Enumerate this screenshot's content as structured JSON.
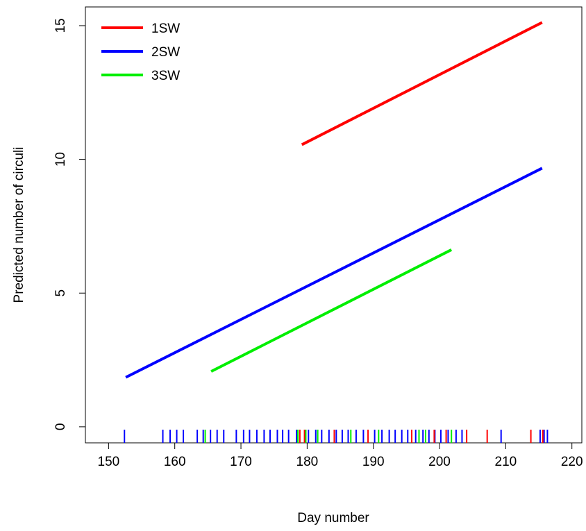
{
  "chart_data": {
    "type": "line",
    "xlabel": "Day number",
    "ylabel": "Predicted number of circuli",
    "xlim": [
      146.5,
      221.5
    ],
    "ylim": [
      -0.6,
      15.7
    ],
    "x_ticks": [
      150,
      160,
      170,
      180,
      190,
      200,
      210,
      220
    ],
    "y_ticks": [
      0,
      5,
      10,
      15
    ],
    "legend_position": "top-left",
    "grid": false,
    "series": [
      {
        "name": "1SW",
        "color": "#ff0000",
        "x": [
          179.2,
          215.5
        ],
        "y": [
          10.55,
          15.12
        ]
      },
      {
        "name": "2SW",
        "color": "#0000ff",
        "x": [
          152.6,
          215.5
        ],
        "y": [
          1.85,
          9.67
        ]
      },
      {
        "name": "3SW",
        "color": "#00ee00",
        "x": [
          165.5,
          201.8
        ],
        "y": [
          2.07,
          6.62
        ]
      }
    ],
    "rug": [
      {
        "series": "2SW",
        "x": [
          152.4,
          158.2,
          159.3,
          160.3,
          161.3,
          163.4,
          164.3,
          165.4,
          166.4,
          167.4,
          169.3,
          170.4,
          171.3,
          172.4,
          173.5,
          174.4,
          175.5,
          176.3,
          177.2,
          178.4,
          180.2,
          181.3,
          182.2,
          183.3,
          184.4,
          185.3,
          186.2,
          187.4,
          188.5,
          190.2,
          191.3,
          192.4,
          193.3,
          194.3,
          195.2,
          196.4,
          197.5,
          198.4,
          199.3,
          200.2,
          201.3,
          202.5,
          203.4,
          209.3,
          215.2,
          215.8,
          216.3
        ]
      },
      {
        "series": "1SW",
        "x": [
          178.9,
          179.6,
          184.1,
          189.2,
          195.8,
          199.2,
          201.0,
          204.1,
          207.2,
          213.8,
          215.6
        ]
      },
      {
        "series": "3SW",
        "x": [
          164.6,
          178.6,
          179.8,
          181.6,
          186.6,
          190.8,
          196.9,
          197.9,
          201.8
        ]
      }
    ]
  }
}
